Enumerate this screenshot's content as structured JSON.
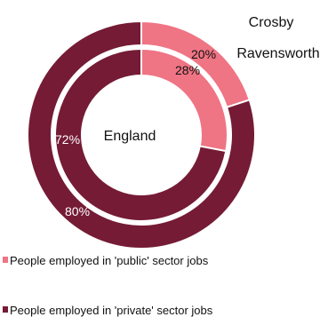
{
  "chart_data": {
    "type": "pie",
    "subtype": "nested-donut",
    "rings": [
      {
        "name": "Crosby Ravensworth",
        "label_lines": [
          "Crosby",
          "Ravensworth"
        ],
        "ring": "outer",
        "values": [
          20,
          80
        ],
        "value_labels": [
          "20%",
          "80%"
        ]
      },
      {
        "name": "England",
        "label_lines": [
          "England"
        ],
        "ring": "inner",
        "values": [
          28,
          72
        ],
        "value_labels": [
          "28%",
          "72%"
        ]
      }
    ],
    "categories": [
      "People employed in 'public' sector jobs",
      "People employed in 'private' sector jobs"
    ],
    "colors": [
      "#ef7484",
      "#751b35"
    ],
    "legend_position": "bottom-left"
  }
}
